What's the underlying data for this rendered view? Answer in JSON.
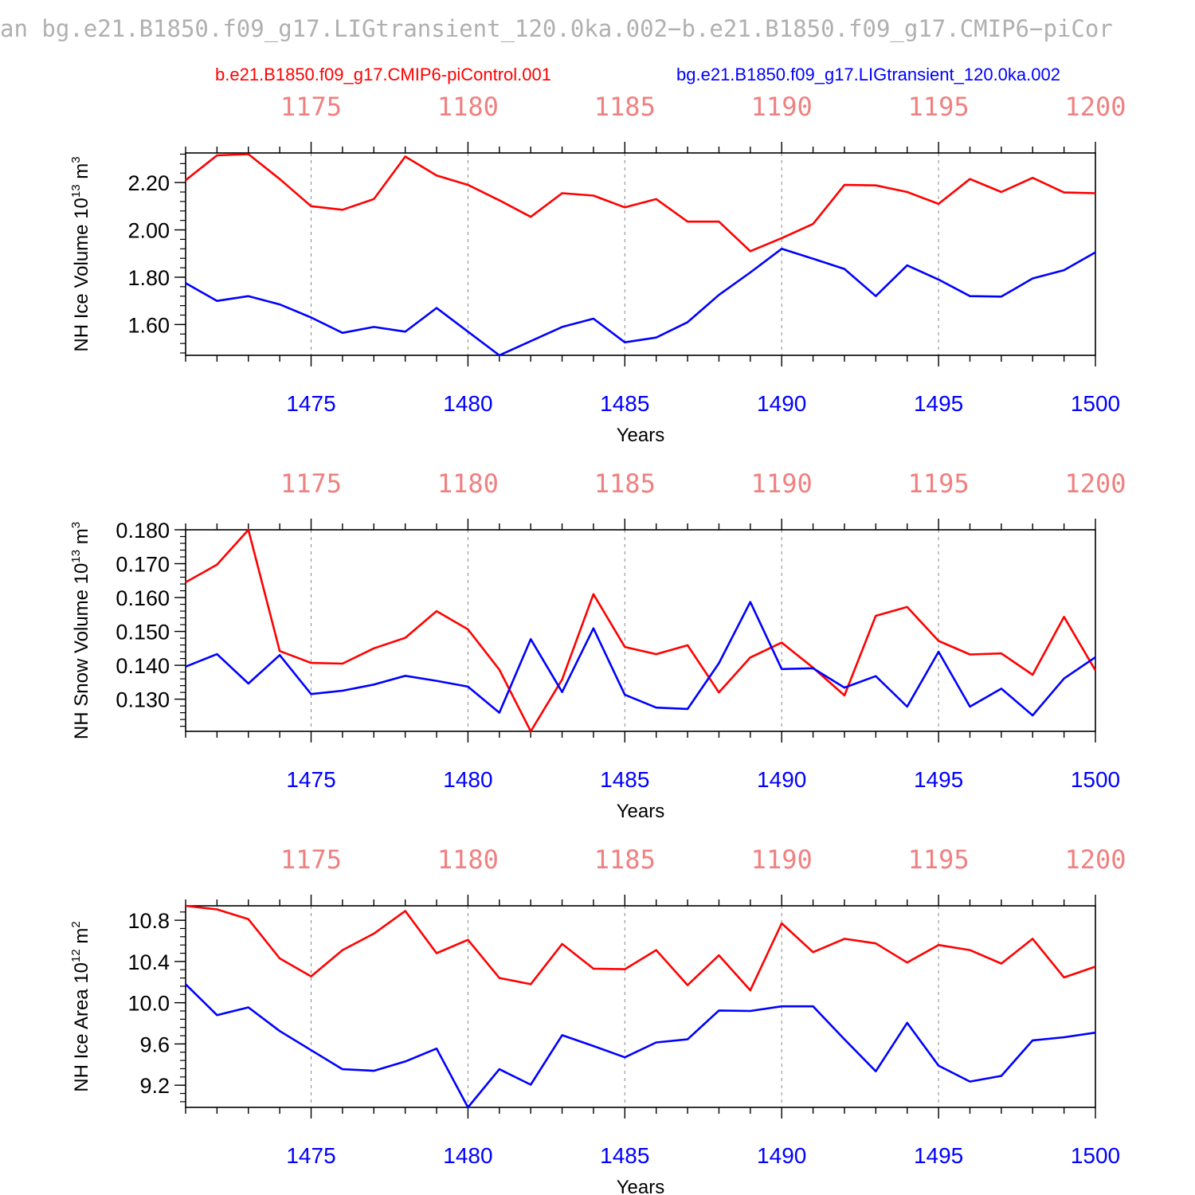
{
  "figure": {
    "title": "an bg.e21.B1850.f09_g17.LIGtransient_120.0ka.002−b.e21.B1850.f09_g17.CMIP6−piCor",
    "legend": [
      {
        "label": "b.e21.B1850.f09_g17.CMIP6-piControl.001",
        "color": "#ff0000"
      },
      {
        "label": "bg.e21.B1850.f09_g17.LIGtransient_120.0ka.002",
        "color": "#0000ff"
      }
    ],
    "colors": {
      "series_a": "#ff0000",
      "series_b": "#0000ff",
      "top_ticks": "#f08080",
      "bottom_ticks": "#0000ff"
    }
  },
  "chart_data": [
    {
      "type": "line",
      "ylabel_main": "NH Ice Volume 10",
      "ylabel_exp": "13",
      "ylabel_unit": " m",
      "ylabel_unit_exp": "3",
      "xlabel": "Years",
      "xlim": [
        1471,
        1500
      ],
      "ylim": [
        1.47,
        2.325
      ],
      "yticks": [
        1.6,
        1.8,
        2.0,
        2.2
      ],
      "ytick_labels": [
        "1.60",
        "1.80",
        "2.00",
        "2.20"
      ],
      "yminor_step": 0.04,
      "xticks_bottom": [
        1475,
        1480,
        1485,
        1490,
        1495,
        1500
      ],
      "xtick_labels_bottom": [
        "1475",
        "1480",
        "1485",
        "1490",
        "1495",
        "1500"
      ],
      "xtick_labels_top": [
        "1175",
        "1180",
        "1185",
        "1190",
        "1195",
        "1200"
      ],
      "x": [
        1471,
        1472,
        1473,
        1474,
        1475,
        1476,
        1477,
        1478,
        1479,
        1480,
        1481,
        1482,
        1483,
        1484,
        1485,
        1486,
        1487,
        1488,
        1489,
        1490,
        1491,
        1492,
        1493,
        1494,
        1495,
        1496,
        1497,
        1498,
        1499,
        1500
      ],
      "series": [
        {
          "name": "b.e21.B1850.f09_g17.CMIP6-piControl.001",
          "color": "#ff0000",
          "values": [
            2.21,
            2.315,
            2.32,
            2.215,
            2.1,
            2.085,
            2.13,
            2.31,
            2.23,
            2.19,
            2.125,
            2.055,
            2.155,
            2.145,
            2.095,
            2.13,
            2.035,
            2.035,
            1.91,
            1.965,
            2.025,
            2.19,
            2.188,
            2.16,
            2.11,
            2.215,
            2.16,
            2.22,
            2.158,
            2.155
          ]
        },
        {
          "name": "bg.e21.B1850.f09_g17.LIGtransient_120.0ka.002",
          "color": "#0000ff",
          "values": [
            1.775,
            1.7,
            1.72,
            1.685,
            1.63,
            1.565,
            1.59,
            1.57,
            1.67,
            1.57,
            1.47,
            1.53,
            1.59,
            1.625,
            1.525,
            1.545,
            1.61,
            1.725,
            1.82,
            1.92,
            1.878,
            1.835,
            1.72,
            1.85,
            1.79,
            1.72,
            1.718,
            1.795,
            1.83,
            1.905
          ]
        }
      ]
    },
    {
      "type": "line",
      "ylabel_main": "NH Snow Volume 10",
      "ylabel_exp": "13",
      "ylabel_unit": " m",
      "ylabel_unit_exp": "3",
      "xlabel": "Years",
      "xlim": [
        1471,
        1500
      ],
      "ylim": [
        0.1205,
        0.18
      ],
      "yticks": [
        0.13,
        0.14,
        0.15,
        0.16,
        0.17,
        0.18
      ],
      "ytick_labels": [
        "0.130",
        "0.140",
        "0.150",
        "0.160",
        "0.170",
        "0.180"
      ],
      "yminor_step": 0.002,
      "xticks_bottom": [
        1475,
        1480,
        1485,
        1490,
        1495,
        1500
      ],
      "xtick_labels_bottom": [
        "1475",
        "1480",
        "1485",
        "1490",
        "1495",
        "1500"
      ],
      "xtick_labels_top": [
        "1175",
        "1180",
        "1185",
        "1190",
        "1195",
        "1200"
      ],
      "x": [
        1471,
        1472,
        1473,
        1474,
        1475,
        1476,
        1477,
        1478,
        1479,
        1480,
        1481,
        1482,
        1483,
        1484,
        1485,
        1486,
        1487,
        1488,
        1489,
        1490,
        1491,
        1492,
        1493,
        1494,
        1495,
        1496,
        1497,
        1498,
        1499,
        1500
      ],
      "series": [
        {
          "name": "b.e21.B1850.f09_g17.CMIP6-piControl.001",
          "color": "#ff0000",
          "values": [
            0.1645,
            0.1697,
            0.18,
            0.1442,
            0.1407,
            0.1405,
            0.145,
            0.1481,
            0.156,
            0.1506,
            0.1387,
            0.1205,
            0.1358,
            0.161,
            0.1454,
            0.1433,
            0.1459,
            0.132,
            0.1423,
            0.1467,
            0.1393,
            0.1311,
            0.1546,
            0.1572,
            0.1472,
            0.1432,
            0.1435,
            0.1372,
            0.1543,
            0.1385
          ]
        },
        {
          "name": "bg.e21.B1850.f09_g17.LIGtransient_120.0ka.002",
          "color": "#0000ff",
          "values": [
            0.1396,
            0.1433,
            0.1346,
            0.143,
            0.1315,
            0.1325,
            0.1343,
            0.1369,
            0.1354,
            0.1337,
            0.126,
            0.1477,
            0.1321,
            0.1509,
            0.1313,
            0.1275,
            0.1271,
            0.1406,
            0.1587,
            0.1389,
            0.1391,
            0.1334,
            0.1368,
            0.1278,
            0.144,
            0.1278,
            0.1331,
            0.1252,
            0.1361,
            0.1424
          ]
        }
      ]
    },
    {
      "type": "line",
      "ylabel_main": "NH Ice Area 10",
      "ylabel_exp": "12",
      "ylabel_unit": " m",
      "ylabel_unit_exp": "2",
      "xlabel": "Years",
      "xlim": [
        1471,
        1500
      ],
      "ylim": [
        8.985,
        10.94
      ],
      "yticks": [
        9.2,
        9.6,
        10.0,
        10.4,
        10.8
      ],
      "ytick_labels": [
        "9.2",
        "9.6",
        "10.0",
        "10.4",
        "10.8"
      ],
      "yminor_step": 0.08,
      "xticks_bottom": [
        1475,
        1480,
        1485,
        1490,
        1495,
        1500
      ],
      "xtick_labels_bottom": [
        "1475",
        "1480",
        "1485",
        "1490",
        "1495",
        "1500"
      ],
      "xtick_labels_top": [
        "1175",
        "1180",
        "1185",
        "1190",
        "1195",
        "1200"
      ],
      "x": [
        1471,
        1472,
        1473,
        1474,
        1475,
        1476,
        1477,
        1478,
        1479,
        1480,
        1481,
        1482,
        1483,
        1484,
        1485,
        1486,
        1487,
        1488,
        1489,
        1490,
        1491,
        1492,
        1493,
        1494,
        1495,
        1496,
        1497,
        1498,
        1499,
        1500
      ],
      "series": [
        {
          "name": "b.e21.B1850.f09_g17.CMIP6-piControl.001",
          "color": "#ff0000",
          "values": [
            10.94,
            10.905,
            10.81,
            10.43,
            10.255,
            10.51,
            10.67,
            10.89,
            10.48,
            10.61,
            10.24,
            10.18,
            10.57,
            10.33,
            10.325,
            10.51,
            10.17,
            10.46,
            10.12,
            10.77,
            10.49,
            10.62,
            10.575,
            10.39,
            10.56,
            10.51,
            10.38,
            10.62,
            10.245,
            10.35
          ]
        },
        {
          "name": "bg.e21.B1850.f09_g17.LIGtransient_120.0ka.002",
          "color": "#0000ff",
          "values": [
            10.18,
            9.88,
            9.955,
            9.725,
            9.54,
            9.355,
            9.34,
            9.43,
            9.555,
            8.985,
            9.355,
            9.205,
            9.685,
            9.58,
            9.47,
            9.615,
            9.645,
            9.925,
            9.92,
            9.965,
            9.965,
            9.645,
            9.335,
            9.805,
            9.39,
            9.235,
            9.29,
            9.635,
            9.665,
            9.71
          ]
        }
      ]
    }
  ]
}
